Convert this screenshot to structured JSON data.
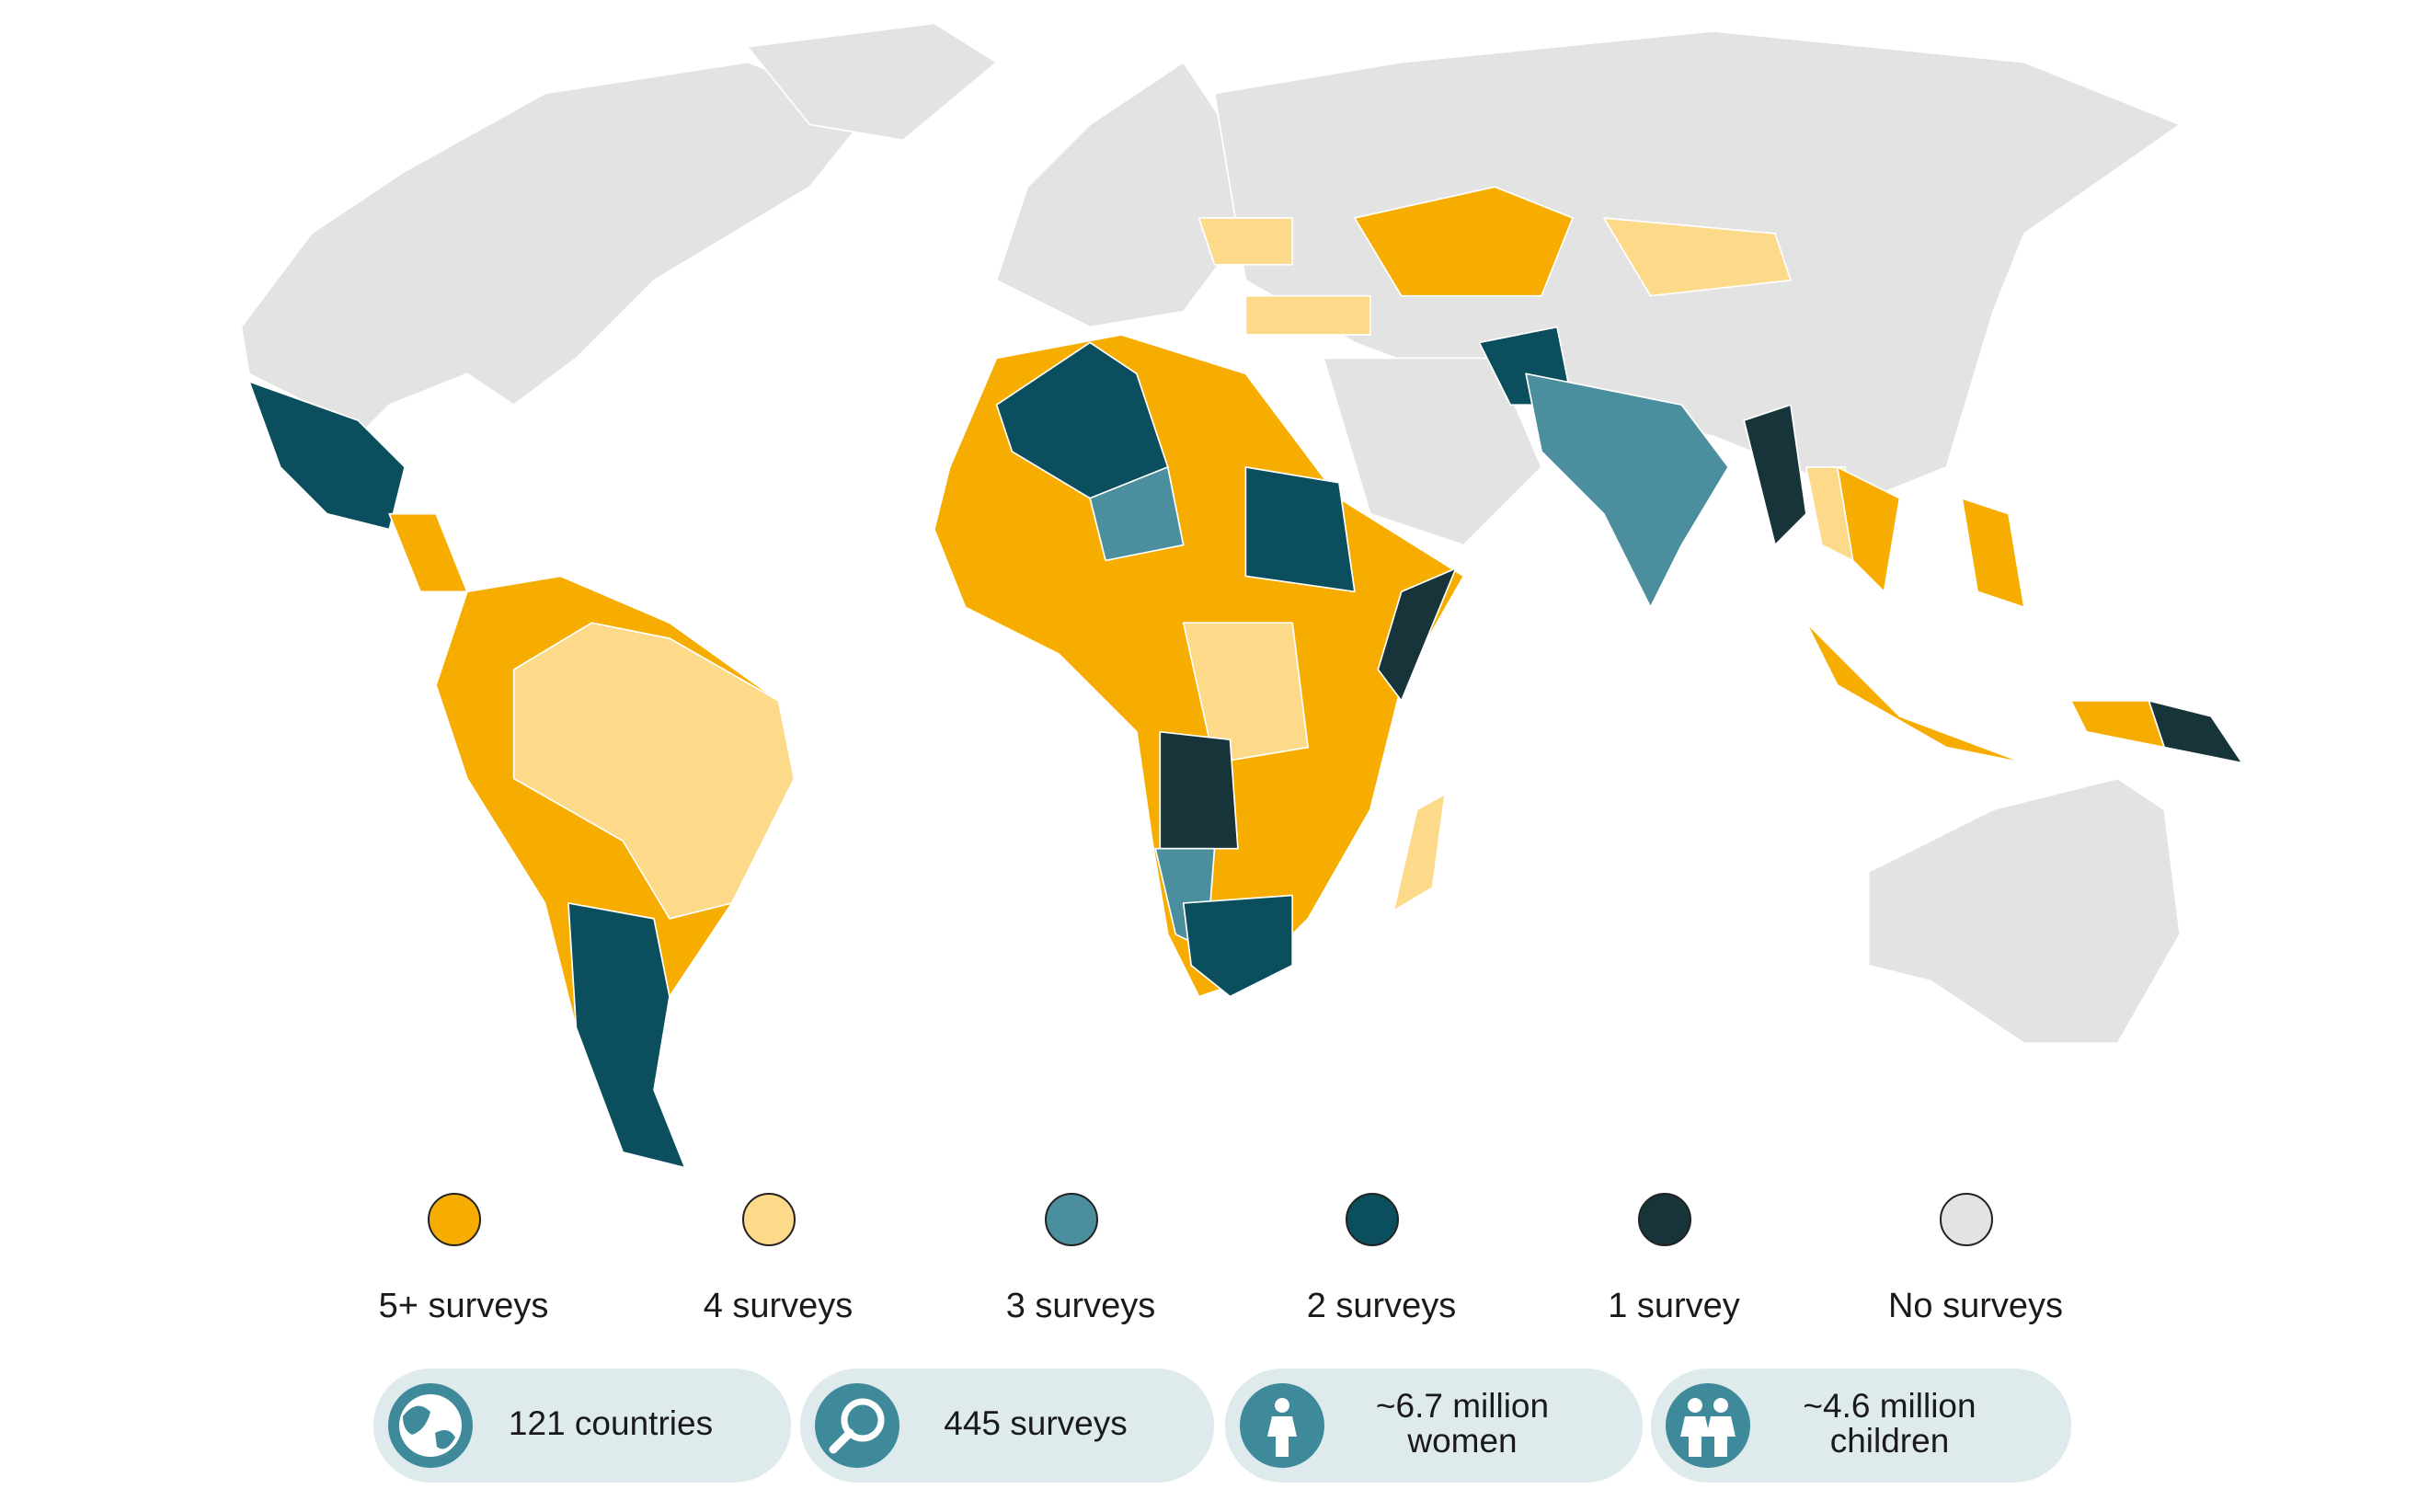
{
  "legend": {
    "items": [
      {
        "label": "5+ surveys",
        "color": "#f6ad00"
      },
      {
        "label": "4 surveys",
        "color": "#fdd98a"
      },
      {
        "label": "3 surveys",
        "color": "#4b8e9e"
      },
      {
        "label": "2 surveys",
        "color": "#0b4e5d"
      },
      {
        "label": "1 survey",
        "color": "#17343b"
      },
      {
        "label": "No surveys",
        "color": "#e3e3e3"
      }
    ]
  },
  "stats": [
    {
      "lines": [
        "121 countries"
      ]
    },
    {
      "lines": [
        "445 surveys"
      ]
    },
    {
      "lines": [
        "~6.7 million",
        "women"
      ]
    },
    {
      "lines": [
        "~4.6 million",
        "children"
      ]
    }
  ]
}
